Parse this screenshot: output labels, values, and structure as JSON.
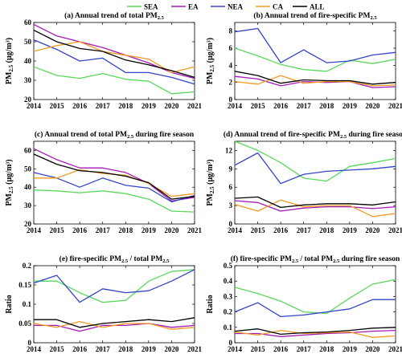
{
  "legend": [
    {
      "name": "SEA",
      "color": "#59d859"
    },
    {
      "name": "EA",
      "color": "#a31bb5"
    },
    {
      "name": "NEA",
      "color": "#3244c8"
    },
    {
      "name": "CA",
      "color": "#f29b22"
    },
    {
      "name": "ALL",
      "color": "#000000"
    }
  ],
  "chart_data": [
    {
      "id": "a",
      "type": "line",
      "title": "(a) Annual trend of total PM",
      "title_sub": "2.5",
      "title_tail": "",
      "ylabel": "PM",
      "ylabel_sub": "2.5",
      "ylabel_unit": " (μg/m³)",
      "x": [
        2014,
        2015,
        2016,
        2017,
        2018,
        2019,
        2020,
        2021
      ],
      "xlim": [
        2014,
        2021
      ],
      "ylim": [
        20,
        60
      ],
      "yticks": [
        20,
        30,
        40,
        50,
        60
      ],
      "series": [
        {
          "name": "SEA",
          "values": [
            37,
            32.5,
            31,
            33.5,
            30.5,
            29.5,
            23,
            24
          ]
        },
        {
          "name": "EA",
          "values": [
            59,
            53,
            50,
            47,
            43,
            39,
            34,
            31
          ]
        },
        {
          "name": "NEA",
          "values": [
            51,
            46,
            40,
            41.5,
            34,
            34,
            31.5,
            28
          ]
        },
        {
          "name": "CA",
          "values": [
            45,
            48,
            50,
            45,
            43,
            41,
            34,
            37
          ]
        },
        {
          "name": "ALL",
          "values": [
            56,
            50,
            46.5,
            45,
            40.5,
            38,
            35,
            31.5
          ]
        }
      ]
    },
    {
      "id": "b",
      "type": "line",
      "title": "(b) Annual trend of fire-specific PM",
      "title_sub": "2.5",
      "title_tail": "",
      "ylabel": "PM",
      "ylabel_sub": "2.5",
      "ylabel_unit": " (μg/m³)",
      "x": [
        2014,
        2015,
        2016,
        2017,
        2018,
        2019,
        2020,
        2021
      ],
      "xlim": [
        2014,
        2021
      ],
      "ylim": [
        0,
        9
      ],
      "yticks": [
        0,
        2,
        4,
        6,
        8
      ],
      "series": [
        {
          "name": "SEA",
          "values": [
            6,
            5.1,
            4.1,
            3.5,
            3.3,
            4.6,
            4.2,
            4.7
          ]
        },
        {
          "name": "EA",
          "values": [
            2.7,
            2.4,
            1.6,
            2.1,
            2.0,
            2.1,
            1.4,
            1.5
          ]
        },
        {
          "name": "NEA",
          "values": [
            7.9,
            8.3,
            4.3,
            5.8,
            4.3,
            4.5,
            5.2,
            5.5
          ]
        },
        {
          "name": "CA",
          "values": [
            2.1,
            1.8,
            2.8,
            1.9,
            2.1,
            2.1,
            1.6,
            1.7
          ]
        },
        {
          "name": "ALL",
          "values": [
            3.3,
            2.8,
            1.9,
            2.3,
            2.2,
            2.2,
            1.8,
            2.0
          ]
        }
      ]
    },
    {
      "id": "c",
      "type": "line",
      "title": "(c) Annual trend of total PM",
      "title_sub": "2.5",
      "title_tail": " during fire season",
      "ylabel": "PM",
      "ylabel_sub": "2.5",
      "ylabel_unit": " (μg/m³)",
      "x": [
        2014,
        2015,
        2016,
        2017,
        2018,
        2019,
        2020,
        2021
      ],
      "xlim": [
        2014,
        2021
      ],
      "ylim": [
        20,
        65
      ],
      "yticks": [
        20,
        30,
        40,
        50,
        60
      ],
      "series": [
        {
          "name": "SEA",
          "values": [
            38.5,
            38,
            37,
            38,
            36.5,
            33.5,
            27,
            26.5
          ]
        },
        {
          "name": "EA",
          "values": [
            61,
            55,
            50.5,
            50.5,
            48,
            42,
            32.5,
            34.5
          ]
        },
        {
          "name": "NEA",
          "values": [
            48,
            45,
            40,
            45,
            41,
            39.5,
            32,
            35.5
          ]
        },
        {
          "name": "CA",
          "values": [
            45,
            45,
            49.5,
            47.5,
            46.5,
            42,
            35,
            36.5
          ]
        },
        {
          "name": "ALL",
          "values": [
            58,
            52.5,
            49,
            48,
            46,
            42.5,
            33.5,
            35
          ]
        }
      ]
    },
    {
      "id": "d",
      "type": "line",
      "title": "(d) Annual trend of fire-specific PM",
      "title_sub": "2.5",
      "title_tail": " during fire season",
      "ylabel": "PM",
      "ylabel_sub": "2.5",
      "ylabel_unit": " (μg/m³)",
      "x": [
        2014,
        2015,
        2016,
        2017,
        2018,
        2019,
        2020,
        2021
      ],
      "xlim": [
        2014,
        2021
      ],
      "ylim": [
        0,
        13.5
      ],
      "yticks": [
        0,
        3,
        6,
        9,
        12
      ],
      "series": [
        {
          "name": "SEA",
          "values": [
            13.5,
            12,
            10,
            7.5,
            7,
            9.4,
            10,
            10.7
          ]
        },
        {
          "name": "EA",
          "values": [
            3.8,
            3.5,
            2.1,
            2.6,
            2.8,
            2.8,
            2.5,
            2.8
          ]
        },
        {
          "name": "NEA",
          "values": [
            9.6,
            11.6,
            6.6,
            8.1,
            8.6,
            8.8,
            9.0,
            9.4
          ]
        },
        {
          "name": "CA",
          "values": [
            3.2,
            2.1,
            3.9,
            2.8,
            3.0,
            3.0,
            1.2,
            1.7
          ]
        },
        {
          "name": "ALL",
          "values": [
            4.2,
            4.4,
            2.7,
            3.1,
            3.3,
            3.3,
            3.1,
            3.6
          ]
        }
      ]
    },
    {
      "id": "e",
      "type": "line",
      "title": "(e) fire-specific PM",
      "title_sub": "2.5",
      "title_tail": " / total PM",
      "title_sub2": "2.5",
      "ylabel": "Ratio",
      "ylabel_sub": "",
      "ylabel_unit": "",
      "x": [
        2014,
        2015,
        2016,
        2017,
        2018,
        2019,
        2020,
        2021
      ],
      "xlim": [
        2014,
        2021
      ],
      "ylim": [
        0,
        0.2
      ],
      "yticks": [
        0,
        0.05,
        0.1,
        0.15,
        0.2
      ],
      "series": [
        {
          "name": "SEA",
          "values": [
            0.16,
            0.16,
            0.13,
            0.105,
            0.11,
            0.16,
            0.185,
            0.19
          ]
        },
        {
          "name": "EA",
          "values": [
            0.045,
            0.045,
            0.03,
            0.045,
            0.045,
            0.05,
            0.04,
            0.045
          ]
        },
        {
          "name": "NEA",
          "values": [
            0.155,
            0.175,
            0.105,
            0.14,
            0.13,
            0.135,
            0.16,
            0.19
          ]
        },
        {
          "name": "CA",
          "values": [
            0.05,
            0.04,
            0.055,
            0.04,
            0.05,
            0.05,
            0.035,
            0.04
          ]
        },
        {
          "name": "ALL",
          "values": [
            0.06,
            0.06,
            0.04,
            0.05,
            0.055,
            0.06,
            0.055,
            0.065
          ]
        }
      ]
    },
    {
      "id": "f",
      "type": "line",
      "title": "(f) fire-specific PM",
      "title_sub": "2.5",
      "title_tail": " / total PM",
      "title_sub2": "2.5",
      "title_tail2": " during fire season",
      "ylabel": "Ratio",
      "ylabel_sub": "",
      "ylabel_unit": "",
      "x": [
        2014,
        2015,
        2016,
        2017,
        2018,
        2019,
        2020,
        2021
      ],
      "xlim": [
        2014,
        2021
      ],
      "ylim": [
        0,
        0.5
      ],
      "yticks": [
        0,
        0.1,
        0.2,
        0.3,
        0.4,
        0.5
      ],
      "series": [
        {
          "name": "SEA",
          "values": [
            0.36,
            0.32,
            0.27,
            0.2,
            0.19,
            0.29,
            0.38,
            0.41
          ]
        },
        {
          "name": "EA",
          "values": [
            0.06,
            0.06,
            0.04,
            0.05,
            0.06,
            0.065,
            0.075,
            0.08
          ]
        },
        {
          "name": "NEA",
          "values": [
            0.2,
            0.26,
            0.17,
            0.18,
            0.2,
            0.22,
            0.28,
            0.28
          ]
        },
        {
          "name": "CA",
          "values": [
            0.07,
            0.05,
            0.08,
            0.06,
            0.065,
            0.07,
            0.035,
            0.045
          ]
        },
        {
          "name": "ALL",
          "values": [
            0.075,
            0.09,
            0.055,
            0.065,
            0.07,
            0.08,
            0.095,
            0.1
          ]
        }
      ]
    }
  ]
}
